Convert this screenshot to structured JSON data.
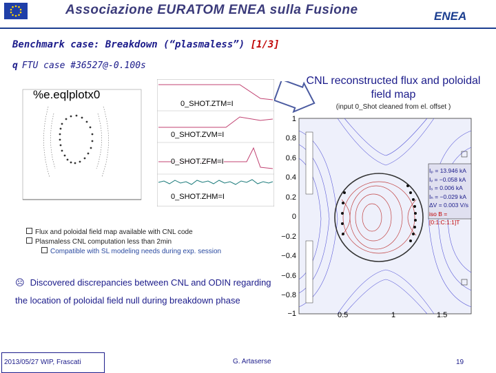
{
  "header": {
    "title": "Associazione EURATOM ENEA sulla Fusione",
    "logo_text": "ENEA"
  },
  "slide": {
    "title_main": "Benchmark case: Breakdown (“plasmaless”) ",
    "title_highlight": "[1/3]",
    "case_line": "FTU case #36527@-0.100s"
  },
  "eq_plot": {
    "label": "%e.eqlplotx0"
  },
  "time_traces": {
    "labels": [
      "0_SHOT.ZTM=I",
      "0_SHOT.ZVM=I",
      "0_SHOT.ZFM=I",
      "0_SHOT.ZHM=I"
    ]
  },
  "cnl": {
    "title": "CNL reconstructed flux and poloidal field map",
    "subtitle": "(input 0_Shot cleaned from el. offset )"
  },
  "flux_map": {
    "y_ticks": [
      "1",
      "0.8",
      "0.6",
      "0.4",
      "0.2",
      "0",
      "−0.2",
      "−0.4",
      "−0.6",
      "−0.8",
      "−1"
    ],
    "x_ticks": [
      "0.5",
      "1",
      "1.5"
    ],
    "legend": [
      "Iₚ = 13.946 kA",
      "Iᵥ = −0.058 kA",
      "Iₛ = 0.006 kA",
      "Iₕ = −0.029 kA",
      "ΔV = 0.003 V/s",
      "iso B = [0:1:C:1:1]T"
    ],
    "colors": {
      "background": "#eef0fb",
      "contour": "#3a3ad0",
      "legend_bg": "#e0e0f0",
      "accent": "#c00000"
    }
  },
  "notes": {
    "items": [
      "Flux and poloidal field map available with CNL code",
      "Plasmaless CNL computation less than 2min"
    ],
    "sub_item": "Compatible with SL modeling needs during exp. session"
  },
  "discrepancy": {
    "text": "Discovered discrepancies between CNL and ODIN regarding the location of poloidal field null during breakdown phase"
  },
  "footer": {
    "date_place": "2013/05/27   WIP, Frascati",
    "author": "G. Artaserse",
    "page": "19"
  }
}
